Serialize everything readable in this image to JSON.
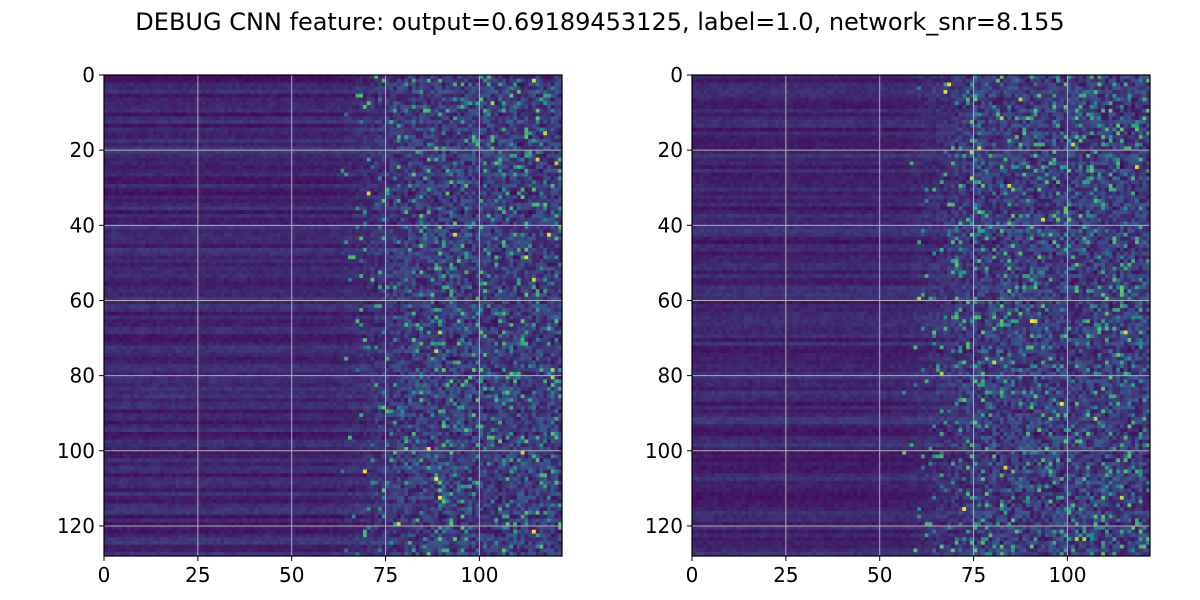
{
  "title": "DEBUG CNN feature: output=0.69189453125, label=1.0, network_snr=8.155",
  "chart_data": [
    {
      "type": "heatmap",
      "panel": "left",
      "colormap": "viridis",
      "grid": true,
      "xlim": [
        0,
        122
      ],
      "ylim": [
        128,
        0
      ],
      "x_ticks": [
        "0",
        "25",
        "50",
        "75",
        "100"
      ],
      "y_ticks": [
        "0",
        "20",
        "40",
        "60",
        "80",
        "100",
        "120"
      ],
      "x_tick_values": [
        0,
        25,
        50,
        75,
        100
      ],
      "y_tick_values": [
        0,
        20,
        40,
        60,
        80,
        100,
        120
      ],
      "n_rows": 128,
      "n_cols": 122,
      "col_ramp_start": 60,
      "col_ramp_end": 82,
      "low_value": 0.05,
      "noise_value": 0.22,
      "hot_fraction": 0.1,
      "max_value": 1.0
    },
    {
      "type": "heatmap",
      "panel": "right",
      "colormap": "viridis",
      "grid": true,
      "xlim": [
        0,
        122
      ],
      "ylim": [
        128,
        0
      ],
      "x_ticks": [
        "0",
        "25",
        "50",
        "75",
        "100"
      ],
      "y_ticks": [
        "0",
        "20",
        "40",
        "60",
        "80",
        "100",
        "120"
      ],
      "x_tick_values": [
        0,
        25,
        50,
        75,
        100
      ],
      "y_tick_values": [
        0,
        20,
        40,
        60,
        80,
        100,
        120
      ],
      "n_rows": 128,
      "n_cols": 122,
      "col_ramp_start": 55,
      "col_ramp_end": 76,
      "low_value": 0.05,
      "noise_value": 0.22,
      "hot_fraction": 0.12,
      "max_value": 1.0
    }
  ]
}
